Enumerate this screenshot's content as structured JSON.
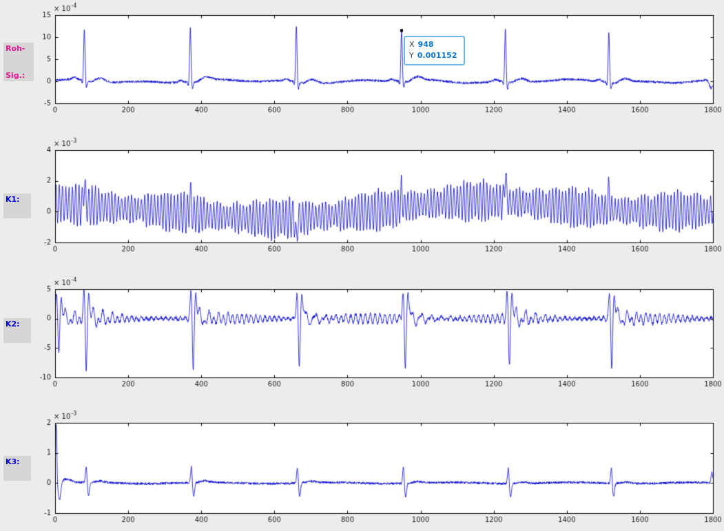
{
  "figure": {
    "bg": "#ececec",
    "axes_bg": "#ffffff",
    "line_color": "#0000cc",
    "tick_color": "#1a1a1a"
  },
  "labels": {
    "box_bg": "#d6d6d6",
    "rohsig": {
      "line1": "Roh-",
      "line2": "Sig.:",
      "color": "#ea1390"
    },
    "k1": {
      "text": "K1:",
      "color": "#0000e0"
    },
    "k2": {
      "text": "K2:",
      "color": "#0000e0"
    },
    "k3": {
      "text": "K3:",
      "color": "#0000e0"
    }
  },
  "datatip": {
    "x_label": "X",
    "x_value": "948",
    "y_label": "Y",
    "y_value": "0.001152",
    "point_x": 948,
    "point_y_units": 11.52,
    "value_color": "#0b79d0",
    "border_color": "#6cb7e4"
  },
  "chart_data": [
    {
      "name": "Roh-Sig.",
      "type": "line",
      "xlim": [
        0,
        1800
      ],
      "ylim": [
        -5,
        15
      ],
      "y_exponent": "-4",
      "xticks": [
        0,
        200,
        400,
        600,
        800,
        1000,
        1200,
        1400,
        1600,
        1800
      ],
      "yticks": [
        -5,
        0,
        5,
        10,
        15
      ],
      "grid": false,
      "signal": {
        "kind": "ecg",
        "noise": 0.27,
        "beats": [
          {
            "x": 80,
            "peak": 11.5
          },
          {
            "x": 370,
            "peak": 12.2
          },
          {
            "x": 660,
            "peak": 12.5
          },
          {
            "x": 948,
            "peak": 11.52
          },
          {
            "x": 1232,
            "peak": 11.7
          },
          {
            "x": 1515,
            "peak": 11.2
          }
        ],
        "end_dip_x": 1795
      }
    },
    {
      "name": "K1",
      "type": "line",
      "xlim": [
        0,
        1800
      ],
      "ylim": [
        -2,
        4
      ],
      "y_exponent": "-3",
      "xticks": [
        0,
        200,
        400,
        600,
        800,
        1000,
        1200,
        1400,
        1600,
        1800
      ],
      "yticks": [
        -2,
        0,
        2,
        4
      ],
      "grid": false,
      "signal": {
        "kind": "am_osc",
        "period": 9,
        "amp": 1.25,
        "noise": 0.1,
        "mean": [
          [
            0,
            0.55
          ],
          [
            260,
            0.1
          ],
          [
            420,
            -0.25
          ],
          [
            560,
            -0.5
          ],
          [
            700,
            -0.35
          ],
          [
            850,
            -0.05
          ],
          [
            1000,
            0.45
          ],
          [
            1150,
            0.72
          ],
          [
            1300,
            0.55
          ],
          [
            1450,
            0.2
          ],
          [
            1600,
            0.0
          ],
          [
            1800,
            0.05
          ]
        ],
        "spikes": [
          {
            "x": 80,
            "a": 1.4
          },
          {
            "x": 370,
            "a": 1.1
          },
          {
            "x": 660,
            "a": -1.5
          },
          {
            "x": 948,
            "a": 1.1
          },
          {
            "x": 1232,
            "a": 1.9
          },
          {
            "x": 1515,
            "a": 1.2
          }
        ]
      }
    },
    {
      "name": "K2",
      "type": "line",
      "xlim": [
        0,
        1800
      ],
      "ylim": [
        -10,
        5
      ],
      "y_exponent": "-4",
      "xticks": [
        0,
        200,
        400,
        600,
        800,
        1000,
        1200,
        1400,
        1600,
        1800
      ],
      "yticks": [
        -10,
        -5,
        0,
        5
      ],
      "grid": false,
      "signal": {
        "kind": "ring",
        "period": 13,
        "noise": 0.25,
        "events": [
          {
            "x": 10,
            "pos": 4.0,
            "neg": -5.6,
            "pos2": 3.0
          },
          {
            "x": 85,
            "pos": 4.2,
            "neg": -8.6
          },
          {
            "x": 378,
            "pos": 4.6,
            "neg": -8.7
          },
          {
            "x": 668,
            "pos": 4.3,
            "neg": -8.5
          },
          {
            "x": 958,
            "pos": 4.5,
            "neg": -8.8
          },
          {
            "x": 1243,
            "pos": 4.0,
            "neg": -7.6
          },
          {
            "x": 1523,
            "pos": 4.3,
            "neg": -8.7
          }
        ]
      }
    },
    {
      "name": "K3",
      "type": "line",
      "xlim": [
        0,
        1800
      ],
      "ylim": [
        -1,
        2
      ],
      "y_exponent": "-3",
      "xticks": [
        0,
        200,
        400,
        600,
        800,
        1000,
        1200,
        1400,
        1600,
        1800
      ],
      "yticks": [
        -1,
        0,
        1,
        2
      ],
      "grid": false,
      "signal": {
        "kind": "pulse",
        "noise": 0.04,
        "pos": 0.55,
        "neg": -0.45,
        "init": {
          "x": 3,
          "peak": 1.95,
          "dip": -0.6
        },
        "beats": [
          {
            "x": 85
          },
          {
            "x": 373
          },
          {
            "x": 663
          },
          {
            "x": 953
          },
          {
            "x": 1240
          },
          {
            "x": 1522
          }
        ],
        "end_blip_x": 1797
      }
    }
  ]
}
